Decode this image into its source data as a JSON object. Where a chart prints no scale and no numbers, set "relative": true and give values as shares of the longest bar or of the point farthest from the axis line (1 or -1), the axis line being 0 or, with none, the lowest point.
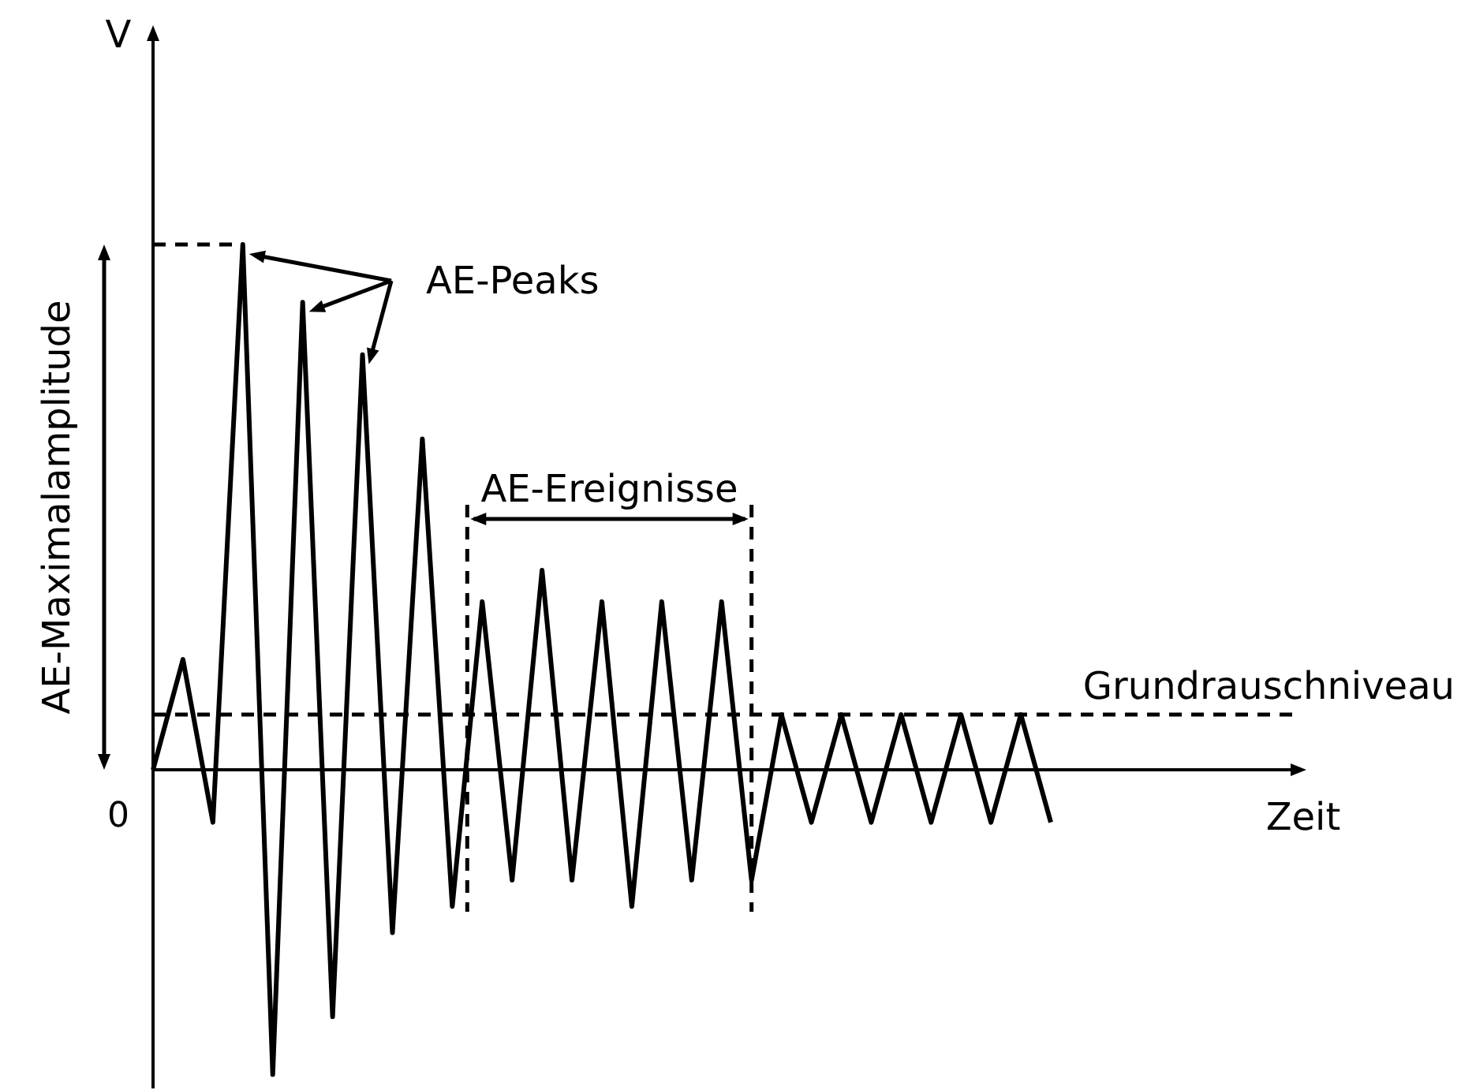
{
  "chart_data": {
    "type": "line",
    "relative": true,
    "ylabel": "V",
    "categories": [
      null,
      null,
      null,
      null,
      null,
      null,
      null,
      null,
      null,
      null,
      null,
      null,
      null,
      null,
      null,
      null,
      null,
      null,
      null,
      null,
      null,
      null,
      null,
      null,
      null,
      null,
      null,
      null,
      null,
      null,
      null
    ],
    "series": [
      {
        "color": "#000000",
        "values": [
          0,
          0.21,
          -0.1,
          1,
          -0.58,
          0.89,
          -0.47,
          0.79,
          -0.31,
          0.63,
          -0.26,
          0.32,
          -0.21,
          0.38,
          -0.21,
          0.32,
          -0.26,
          0.32,
          -0.21,
          0.32,
          -0.21,
          0.105,
          -0.1,
          0.105,
          -0.1,
          0.105,
          -0.1,
          0.105,
          -0.1,
          0.105,
          -0.1
        ]
      }
    ],
    "ref_lines": [
      {
        "axis": "y",
        "value": 0.105,
        "label": "Grundrauschniveau",
        "line_style": "dashed"
      },
      {
        "axis": "y",
        "value": 1,
        "label": null,
        "line_style": "dashed"
      }
    ],
    "annotations": [
      "AE-Peaks",
      "AE-Maximalamplitude",
      "0",
      "AE-Ereignisse",
      "Zeit"
    ],
    "marker": "none",
    "line_style": "solid"
  }
}
